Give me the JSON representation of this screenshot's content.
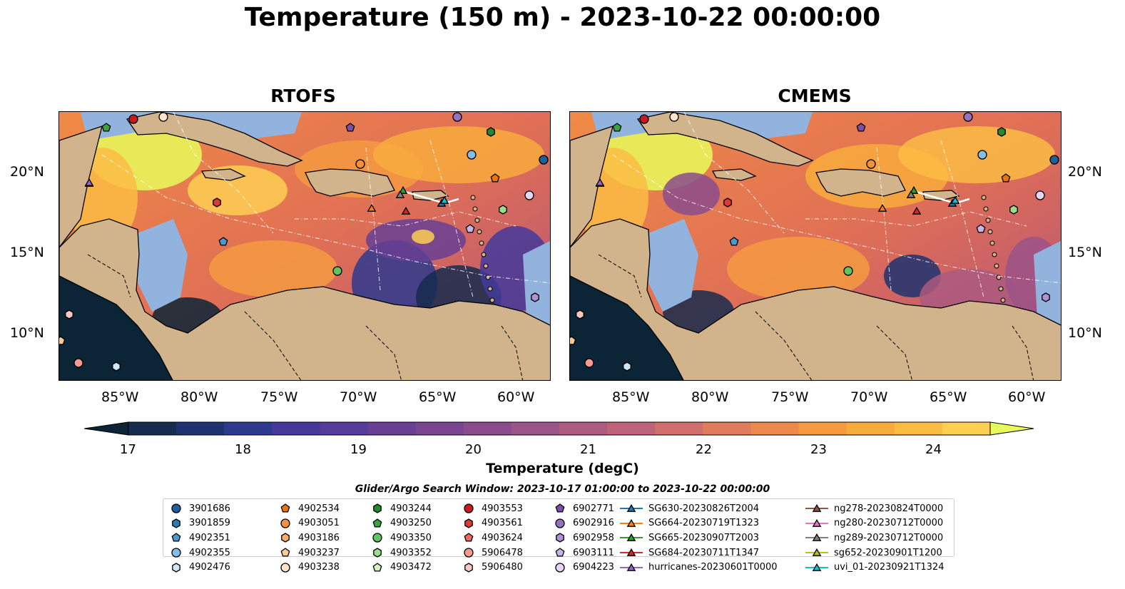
{
  "title": "Temperature (150 m) - 2023-10-22 00:00:00",
  "panels": [
    {
      "title": "RTOFS"
    },
    {
      "title": "CMEMS"
    }
  ],
  "lat_ticks": [
    "20°N",
    "15°N",
    "10°N"
  ],
  "lon_ticks": [
    "85°W",
    "80°W",
    "75°W",
    "70°W",
    "65°W",
    "60°W"
  ],
  "colorbar": {
    "label": "Temperature (degC)",
    "ticks": [
      "17",
      "18",
      "19",
      "20",
      "21",
      "22",
      "23",
      "24"
    ],
    "colors": [
      "#0b2436",
      "#162c4e",
      "#1f3270",
      "#2e3a8e",
      "#44399a",
      "#573b98",
      "#693f94",
      "#7a4590",
      "#8a4c8c",
      "#9b5487",
      "#ad5b80",
      "#bf6478",
      "#d16f6c",
      "#df7c5c",
      "#ec8a4d",
      "#f49a41",
      "#f8ab3d",
      "#fbbc44",
      "#fdcf52",
      "#e8fa5b"
    ]
  },
  "legend": {
    "title": "Glider/Argo Search Window: 2023-10-17 01:00:00 to 2023-10-22 00:00:00",
    "columns": [
      [
        {
          "label": "3901686",
          "marker": "circle",
          "color": "#1f5f9b"
        },
        {
          "label": "3901859",
          "marker": "hexagon",
          "color": "#2d7bb6"
        },
        {
          "label": "4902351",
          "marker": "pentagon",
          "color": "#4a98d0"
        },
        {
          "label": "4902355",
          "marker": "circle",
          "color": "#86bde6"
        },
        {
          "label": "4902476",
          "marker": "hexagon",
          "color": "#cfe6f7"
        }
      ],
      [
        {
          "label": "4902534",
          "marker": "pentagon",
          "color": "#e8740c"
        },
        {
          "label": "4903051",
          "marker": "circle",
          "color": "#f5913a"
        },
        {
          "label": "4903186",
          "marker": "hexagon",
          "color": "#f8ad6b"
        },
        {
          "label": "4903237",
          "marker": "pentagon",
          "color": "#fbc997"
        },
        {
          "label": "4903238",
          "marker": "circle",
          "color": "#fde3c8"
        }
      ],
      [
        {
          "label": "4903244",
          "marker": "hexagon",
          "color": "#238b2d"
        },
        {
          "label": "4903250",
          "marker": "pentagon",
          "color": "#3aa43f"
        },
        {
          "label": "4903350",
          "marker": "circle",
          "color": "#63c35f"
        },
        {
          "label": "4903352",
          "marker": "hexagon",
          "color": "#9cdc8f"
        },
        {
          "label": "4903472",
          "marker": "pentagon",
          "color": "#d3f2c6"
        }
      ],
      [
        {
          "label": "4903553",
          "marker": "circle",
          "color": "#c81b21"
        },
        {
          "label": "4903561",
          "marker": "hexagon",
          "color": "#dc3a36"
        },
        {
          "label": "4903624",
          "marker": "pentagon",
          "color": "#ec6a60"
        },
        {
          "label": "5906478",
          "marker": "circle",
          "color": "#f69a92"
        },
        {
          "label": "5906480",
          "marker": "hexagon",
          "color": "#fcc7c1"
        }
      ],
      [
        {
          "label": "6902771",
          "marker": "pentagon",
          "color": "#7a4fa8"
        },
        {
          "label": "6902916",
          "marker": "circle",
          "color": "#9572c0"
        },
        {
          "label": "6902958",
          "marker": "hexagon",
          "color": "#ad93d4"
        },
        {
          "label": "6903111",
          "marker": "pentagon",
          "color": "#c8b5e6"
        },
        {
          "label": "6904223",
          "marker": "circle",
          "color": "#e4d6f4"
        }
      ],
      [
        {
          "label": "SG630-20230826T2004",
          "marker": "triangle",
          "color": "#1f77b4"
        },
        {
          "label": "SG664-20230719T1323",
          "marker": "triangle",
          "color": "#ff7f0e"
        },
        {
          "label": "SG665-20230907T2003",
          "marker": "triangle",
          "color": "#2ca02c"
        },
        {
          "label": "SG684-20230711T1347",
          "marker": "triangle",
          "color": "#d62728"
        },
        {
          "label": "hurricanes-20230601T0000",
          "marker": "triangle",
          "color": "#9467bd"
        }
      ],
      [
        {
          "label": "ng278-20230824T0000",
          "marker": "triangle",
          "color": "#8c564b"
        },
        {
          "label": "ng280-20230712T0000",
          "marker": "triangle",
          "color": "#e377c2"
        },
        {
          "label": "ng289-20230712T0000",
          "marker": "triangle",
          "color": "#7f7f7f"
        },
        {
          "label": "sg652-20230901T1200",
          "marker": "triangle",
          "color": "#bcbd22"
        },
        {
          "label": "uvi_01-20230921T1324",
          "marker": "triangle",
          "color": "#17becf"
        }
      ]
    ]
  },
  "map_colors": {
    "land": "#d2b48c",
    "shelf": "#93b3df",
    "cold": "#0b2436",
    "coast": "#000000"
  }
}
